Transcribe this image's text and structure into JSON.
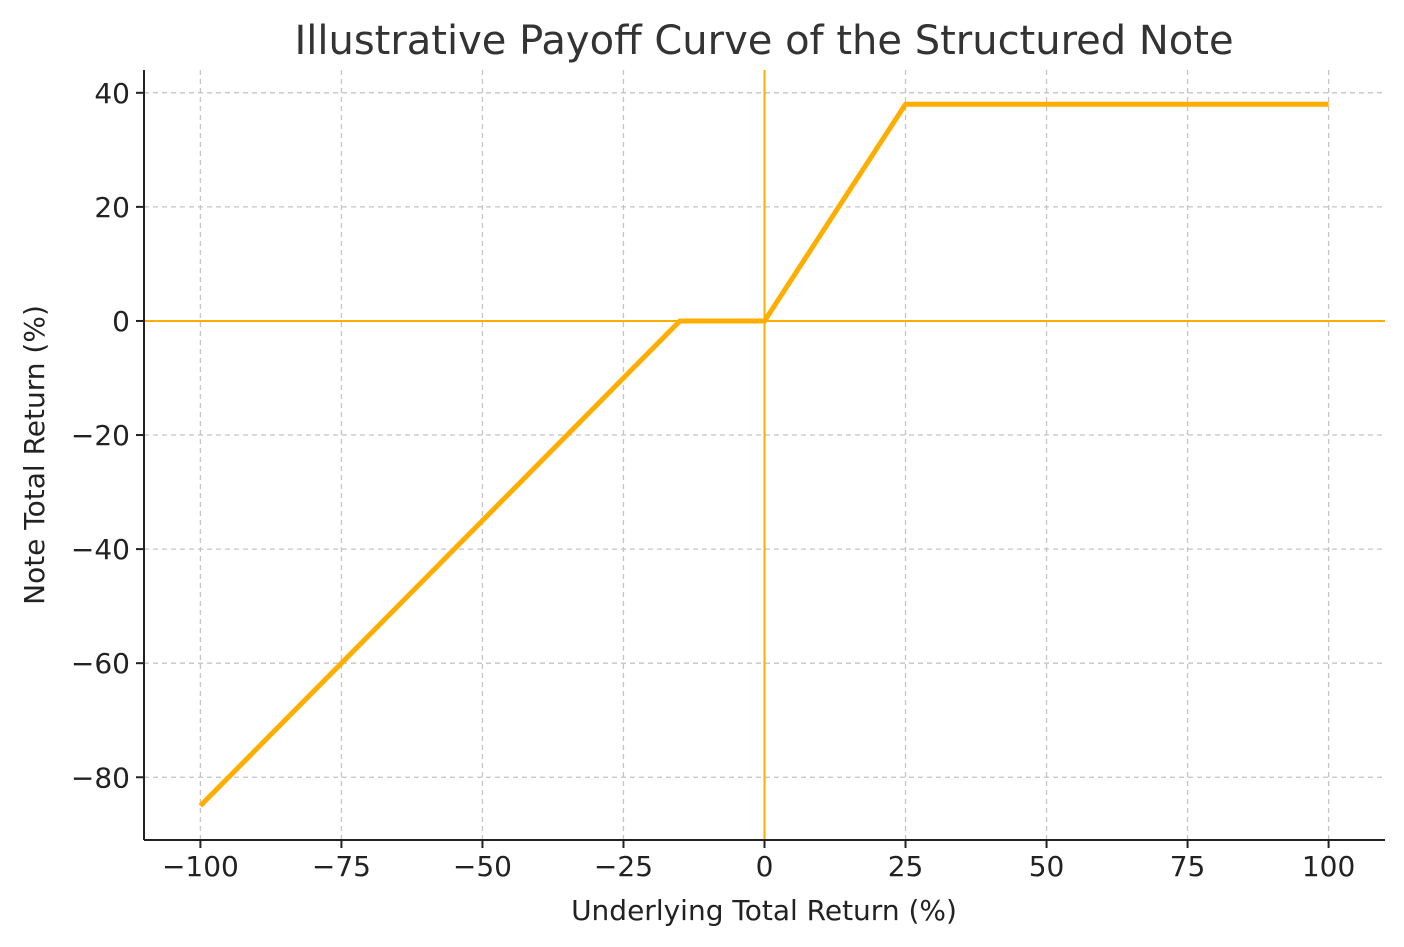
{
  "chart_data": {
    "type": "line",
    "title": "Illustrative Payoff Curve of the Structured Note",
    "xlabel": "Underlying Total Return (%)",
    "ylabel": "Note Total Return (%)",
    "xlim": [
      -110,
      110
    ],
    "ylim": [
      -91,
      44
    ],
    "xticks": [
      -100,
      -75,
      -50,
      -25,
      0,
      25,
      50,
      75,
      100
    ],
    "xtick_labels": [
      "−100",
      "−75",
      "−50",
      "−25",
      "0",
      "25",
      "50",
      "75",
      "100"
    ],
    "yticks": [
      40,
      20,
      0,
      -20,
      -40,
      -60,
      -80
    ],
    "ytick_labels": [
      "40",
      "20",
      "0",
      "−20",
      "−40",
      "−60",
      "−80"
    ],
    "grid": true,
    "reference_lines": [
      {
        "orientation": "horizontal",
        "value": 0,
        "color": "#ffae00"
      },
      {
        "orientation": "vertical",
        "value": 0,
        "color": "#ffae00"
      }
    ],
    "series": [
      {
        "color": "#ffae00",
        "x": [
          -100,
          -15,
          0,
          25,
          100
        ],
        "y": [
          -85,
          0,
          0,
          38,
          38
        ]
      }
    ]
  }
}
